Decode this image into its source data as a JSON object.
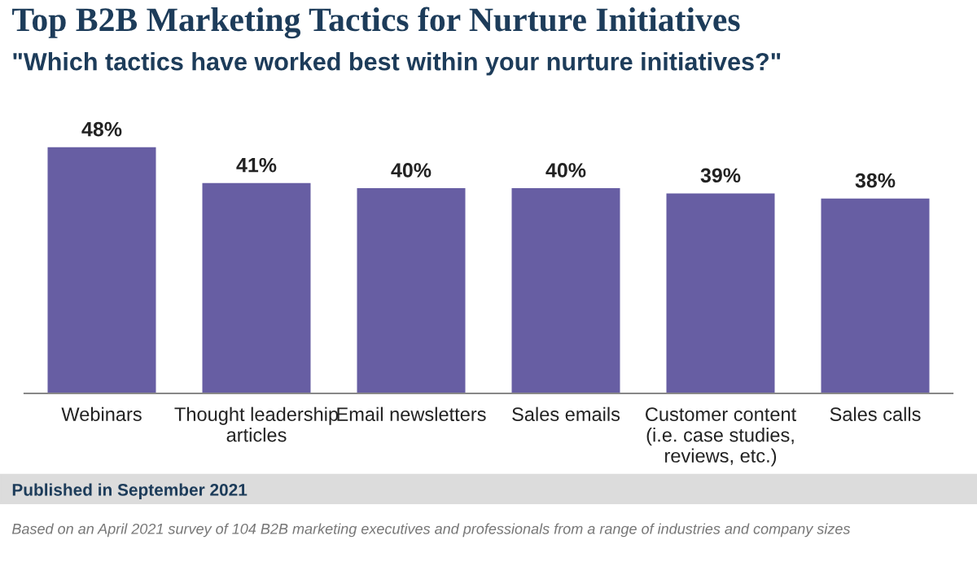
{
  "chart_data": {
    "type": "bar",
    "title": "Top B2B Marketing Tactics for Nurture Initiatives",
    "subtitle": "\"Which tactics have worked best within your nurture initiatives?\"",
    "categories": [
      "Webinars",
      "Thought leadership\narticles",
      "Email newsletters",
      "Sales emails",
      "Customer content\n(i.e. case studies,\nreviews, etc.)",
      "Sales calls"
    ],
    "values": [
      48,
      41,
      40,
      40,
      39,
      38
    ],
    "value_labels": [
      "48%",
      "41%",
      "40%",
      "40%",
      "39%",
      "38%"
    ],
    "color": "#675ea3",
    "grid": false,
    "annotations": [
      "Published in September 2021",
      "Based on an April 2021 survey of 104 B2B marketing executives and professionals from a range of industries and company sizes"
    ]
  }
}
